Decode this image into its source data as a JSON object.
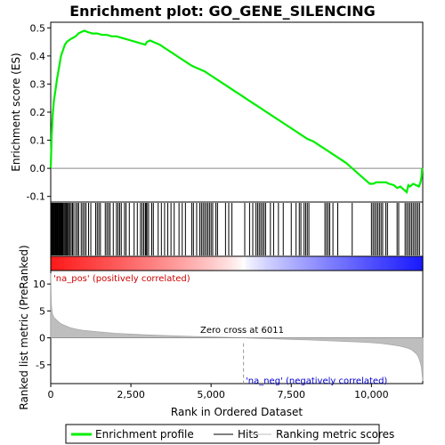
{
  "chart_data": {
    "type": "line",
    "title": "Enrichment plot: GO_GENE_SILENCING",
    "xlabel": "Rank in Ordered Dataset",
    "ylabel_top": "Enrichment score (ES)",
    "ylabel_bottom": "Ranked list metric (PreRanked)",
    "x_range": [
      0,
      11600
    ],
    "es_ylim": [
      -0.12,
      0.52
    ],
    "metric_ylim": [
      -8.5,
      12.5
    ],
    "x_ticks": [
      0,
      2500,
      5000,
      7500,
      10000
    ],
    "x_tick_labels": [
      "0",
      "2,500",
      "5,000",
      "7,500",
      "10,000"
    ],
    "es_ticks": [
      -0.1,
      0.0,
      0.1,
      0.2,
      0.3,
      0.4,
      0.5
    ],
    "es_tick_labels": [
      "-0.1",
      "0.0",
      "0.1",
      "0.2",
      "0.3",
      "0.4",
      "0.5"
    ],
    "metric_ticks": [
      -5,
      0,
      5,
      10
    ],
    "metric_tick_labels": [
      "-5",
      "0",
      "5",
      "10"
    ],
    "zero_cross": 6011,
    "zero_cross_label": "Zero cross at 6011",
    "pos_label": "'na_pos' (positively correlated)",
    "neg_label": "'na_neg' (negatively correlated)",
    "legend": [
      "Enrichment profile",
      "Hits",
      "Ranking metric scores"
    ],
    "colors": {
      "profile": "#00ee00",
      "hits": "#000000",
      "metric": "#bebebe",
      "pos_text": "#cc0000",
      "neg_text": "#0000cc"
    },
    "es_series": {
      "name": "Enrichment profile",
      "x": [
        0,
        30,
        60,
        100,
        150,
        200,
        260,
        320,
        380,
        440,
        500,
        560,
        620,
        700,
        780,
        860,
        950,
        1050,
        1150,
        1300,
        1450,
        1600,
        1750,
        1900,
        2050,
        2200,
        2350,
        2500,
        2650,
        2800,
        2950,
        3000,
        3100,
        3200,
        3400,
        3600,
        3800,
        4000,
        4200,
        4400,
        4600,
        4800,
        5000,
        5200,
        5400,
        5600,
        5800,
        6000,
        6200,
        6400,
        6600,
        6800,
        7000,
        7200,
        7400,
        7600,
        7800,
        8000,
        8200,
        8400,
        8600,
        8800,
        9000,
        9200,
        9400,
        9600,
        9800,
        9950,
        10050,
        10150,
        10300,
        10450,
        10550,
        10700,
        10800,
        10900,
        11000,
        11100,
        11150,
        11200,
        11300,
        11400,
        11480,
        11530,
        11560,
        11580
      ],
      "y": [
        0.0,
        0.12,
        0.19,
        0.24,
        0.28,
        0.32,
        0.36,
        0.4,
        0.42,
        0.44,
        0.45,
        0.455,
        0.46,
        0.465,
        0.47,
        0.48,
        0.485,
        0.49,
        0.485,
        0.48,
        0.48,
        0.475,
        0.475,
        0.47,
        0.47,
        0.465,
        0.46,
        0.455,
        0.45,
        0.445,
        0.44,
        0.45,
        0.455,
        0.45,
        0.44,
        0.425,
        0.41,
        0.395,
        0.38,
        0.365,
        0.355,
        0.345,
        0.33,
        0.315,
        0.3,
        0.285,
        0.27,
        0.255,
        0.24,
        0.225,
        0.21,
        0.195,
        0.18,
        0.165,
        0.15,
        0.135,
        0.12,
        0.105,
        0.095,
        0.08,
        0.065,
        0.05,
        0.035,
        0.02,
        0.0,
        -0.02,
        -0.04,
        -0.055,
        -0.055,
        -0.05,
        -0.05,
        -0.05,
        -0.055,
        -0.06,
        -0.07,
        -0.065,
        -0.075,
        -0.085,
        -0.06,
        -0.065,
        -0.055,
        -0.06,
        -0.065,
        -0.05,
        -0.03,
        0.0
      ]
    },
    "metric_series": {
      "name": "Ranking metric scores",
      "x": [
        0,
        20,
        50,
        100,
        200,
        300,
        400,
        600,
        800,
        1000,
        1500,
        2000,
        2500,
        3000,
        3500,
        4000,
        4500,
        5000,
        5500,
        6011,
        6500,
        7000,
        7500,
        8000,
        8500,
        9000,
        9500,
        10000,
        10300,
        10600,
        10900,
        11100,
        11250,
        11350,
        11430,
        11480,
        11520,
        11560,
        11580,
        11600
      ],
      "y": [
        12.0,
        6.2,
        4.5,
        3.8,
        3.2,
        2.7,
        2.4,
        1.9,
        1.6,
        1.4,
        1.1,
        0.85,
        0.7,
        0.55,
        0.45,
        0.35,
        0.25,
        0.18,
        0.1,
        0.0,
        -0.1,
        -0.18,
        -0.28,
        -0.38,
        -0.5,
        -0.62,
        -0.75,
        -0.9,
        -1.05,
        -1.25,
        -1.55,
        -1.85,
        -2.2,
        -2.7,
        -3.2,
        -3.8,
        -4.5,
        -5.5,
        -6.8,
        -8.0
      ]
    },
    "hit_positions": [
      20,
      40,
      60,
      80,
      100,
      120,
      140,
      160,
      180,
      200,
      220,
      240,
      260,
      280,
      300,
      320,
      340,
      360,
      380,
      410,
      440,
      470,
      500,
      530,
      560,
      600,
      640,
      680,
      720,
      780,
      830,
      870,
      950,
      1000,
      1050,
      1100,
      1180,
      1250,
      1400,
      1450,
      1500,
      1550,
      1700,
      1750,
      1800,
      1850,
      1950,
      2050,
      2100,
      2150,
      2200,
      2300,
      2350,
      2450,
      2600,
      2700,
      2800,
      2850,
      2900,
      2950,
      2970,
      3000,
      3050,
      3150,
      3200,
      3350,
      3450,
      3550,
      3650,
      3750,
      3850,
      4000,
      4100,
      4200,
      4400,
      4450,
      4550,
      4650,
      4700,
      4750,
      4800,
      4850,
      4900,
      4950,
      5000,
      5050,
      5150,
      5200,
      5450,
      5550,
      5650,
      6050,
      6200,
      6300,
      6400,
      6450,
      6500,
      6550,
      6600,
      6650,
      6700,
      6850,
      6950,
      7100,
      7250,
      7500,
      7650,
      7750,
      7800,
      7900,
      7950,
      8000,
      8050,
      8550,
      8600,
      8650,
      8700,
      8800,
      8950,
      9400,
      10000,
      10050,
      10100,
      10150,
      10200,
      10250,
      10300,
      10350,
      10450,
      10500,
      10800,
      10850,
      11050,
      11100,
      11150,
      11200,
      11250,
      11300,
      11350,
      11400,
      11450,
      11500
    ]
  }
}
